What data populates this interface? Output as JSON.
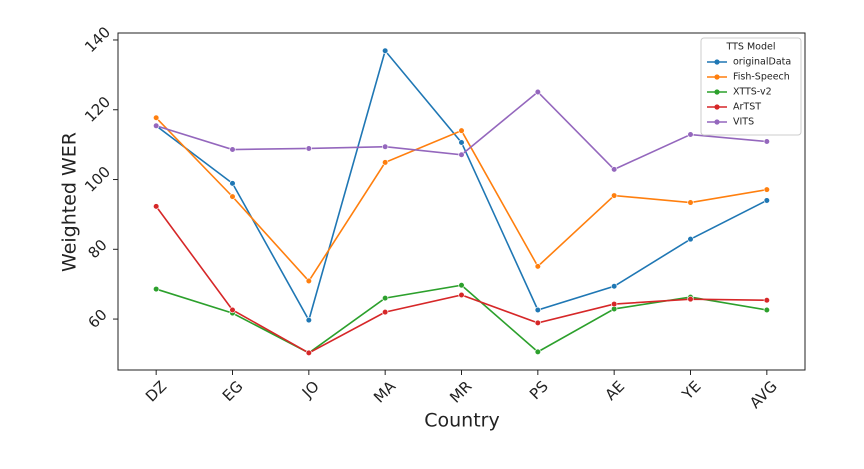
{
  "chart_data": {
    "type": "line",
    "x_label": "Country",
    "y_label": "Weighted WER",
    "categories": [
      "DZ",
      "EG",
      "JO",
      "MA",
      "MR",
      "PS",
      "AE",
      "YE",
      "AVG"
    ],
    "series": [
      {
        "name": "originalData",
        "color": "#1f77b4",
        "values": [
          115.4,
          98.9,
          59.7,
          136.9,
          110.6,
          62.6,
          69.4,
          82.9,
          94.0
        ]
      },
      {
        "name": "Fish-Speech",
        "color": "#ff7f0e",
        "values": [
          117.7,
          95.1,
          70.9,
          104.9,
          114.0,
          75.1,
          95.4,
          93.4,
          97.1
        ]
      },
      {
        "name": "XTTS-v2",
        "color": "#2ca02c",
        "values": [
          68.6,
          61.7,
          50.3,
          66.0,
          69.7,
          50.6,
          62.9,
          66.3,
          62.6
        ]
      },
      {
        "name": "ArTST",
        "color": "#d62728",
        "values": [
          92.3,
          62.6,
          50.3,
          62.0,
          66.9,
          58.9,
          64.3,
          65.7,
          65.4
        ]
      },
      {
        "name": "VITS",
        "color": "#9467bd",
        "values": [
          115.4,
          108.6,
          108.9,
          109.4,
          107.1,
          125.1,
          102.9,
          112.9,
          110.9
        ]
      }
    ],
    "legend_title": "TTS Model",
    "legend": "upper right",
    "grid": false,
    "ylim": [
      45.4,
      142
    ],
    "yticks": [
      60,
      80,
      100,
      120,
      140
    ]
  }
}
